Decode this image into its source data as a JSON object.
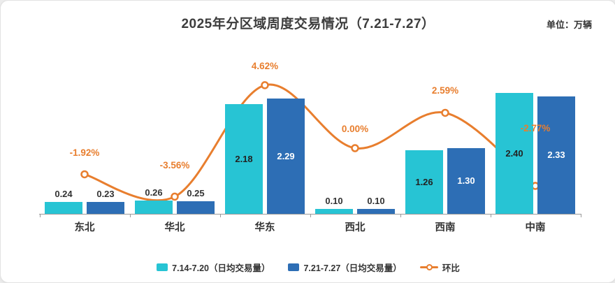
{
  "page": {
    "title": "2025年分区域周度交易情况（7.21-7.27）",
    "unit_label": "单位：万辆"
  },
  "chart_data": {
    "type": "bar",
    "title": "2025年分区域周度交易情况（7.21-7.27）",
    "unit": "万辆",
    "categories": [
      "东北",
      "华北",
      "华东",
      "西北",
      "西南",
      "中南"
    ],
    "series": [
      {
        "name": "7.14-7.20（日均交易量）",
        "type": "bar",
        "color": "#27C4D4",
        "values": [
          0.24,
          0.26,
          2.18,
          0.1,
          1.26,
          2.4
        ]
      },
      {
        "name": "7.21-7.27（日均交易量）",
        "type": "bar",
        "color": "#2D6EB5",
        "values": [
          0.23,
          0.25,
          2.29,
          0.1,
          1.3,
          2.33
        ]
      },
      {
        "name": "环比",
        "type": "line",
        "color": "#E87E2E",
        "values_pct": [
          -1.92,
          -3.56,
          4.62,
          0.0,
          2.59,
          -2.77
        ],
        "labels": [
          "-1.92%",
          "-3.56%",
          "4.62%",
          "0.00%",
          "2.59%",
          "-2.77%"
        ]
      }
    ],
    "ylim": [
      0,
      2.6
    ],
    "grid": false,
    "legend_position": "bottom",
    "xlabel": "",
    "ylabel": ""
  },
  "legend": {
    "items": [
      {
        "label": "7.14-7.20（日均交易量）",
        "color": "#27C4D4",
        "type": "bar"
      },
      {
        "label": "7.21-7.27（日均交易量）",
        "color": "#2D6EB5",
        "type": "bar"
      },
      {
        "label": "环比",
        "color": "#E87E2E",
        "type": "line"
      }
    ]
  },
  "colors": {
    "bar_week1": "#27C4D4",
    "bar_week2": "#2D6EB5",
    "line": "#E87E2E",
    "label_on_cyan": "#222222",
    "label_on_blue": "#ffffff",
    "label_outside": "#333333"
  }
}
